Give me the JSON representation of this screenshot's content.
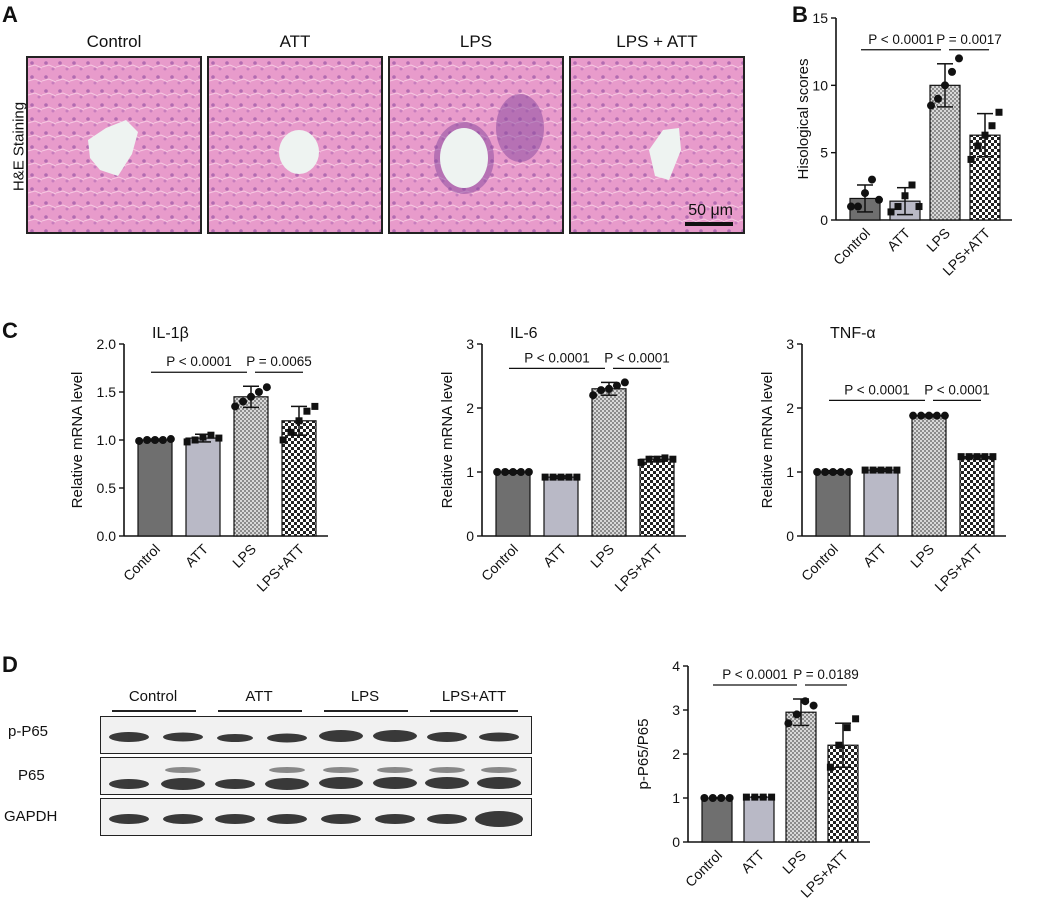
{
  "panels": {
    "a": "A",
    "b": "B",
    "c": "C",
    "d": "D"
  },
  "panel_a": {
    "columns": [
      "Control",
      "ATT",
      "LPS",
      "LPS + ATT"
    ],
    "row_label": "H&E Staining",
    "scale_bar": "50 μm"
  },
  "panel_d_blot": {
    "lanes": [
      "Control",
      "ATT",
      "LPS",
      "LPS+ATT"
    ],
    "rows": [
      "p-P65",
      "P65",
      "GAPDH"
    ]
  },
  "colors": {
    "control": "#6f6f6f",
    "att": "#b9b9c6",
    "lps": "#9a9a9a",
    "lps_att": "#4a4a4a",
    "stain": "#e79ac9"
  },
  "chart_data": [
    {
      "id": "B",
      "type": "bar",
      "categories": [
        "Control",
        "ATT",
        "LPS",
        "LPS+ATT"
      ],
      "values": [
        1.6,
        1.4,
        10.0,
        6.3
      ],
      "errors": [
        1.0,
        1.0,
        1.6,
        1.6
      ],
      "points": [
        [
          1.0,
          1.0,
          2.0,
          3.0,
          1.5
        ],
        [
          0.6,
          1.0,
          1.8,
          2.6,
          1.0
        ],
        [
          8.5,
          9.0,
          10.0,
          11.0,
          12.0
        ],
        [
          4.5,
          5.5,
          6.3,
          7.0,
          8.0
        ]
      ],
      "ylabel": "Hisological scores",
      "ylim": [
        0,
        15
      ],
      "yticks": [
        "0",
        "5",
        "10",
        "15"
      ],
      "annotations": [
        {
          "text": "P < 0.0001",
          "from": 0,
          "to": 2
        },
        {
          "text": "P = 0.0017",
          "from": 2,
          "to": 3
        }
      ]
    },
    {
      "id": "C1",
      "type": "bar",
      "title": "IL-1β",
      "categories": [
        "Control",
        "ATT",
        "LPS",
        "LPS+ATT"
      ],
      "values": [
        1.0,
        1.02,
        1.45,
        1.2
      ],
      "errors": [
        0.01,
        0.04,
        0.11,
        0.15
      ],
      "points": [
        [
          0.99,
          1.0,
          1.0,
          1.0,
          1.01
        ],
        [
          0.98,
          1.0,
          1.03,
          1.05,
          1.02
        ],
        [
          1.35,
          1.4,
          1.45,
          1.5,
          1.55
        ],
        [
          1.0,
          1.08,
          1.2,
          1.3,
          1.35
        ]
      ],
      "ylabel": "Relative mRNA level",
      "ylim": [
        0,
        2.0
      ],
      "yticks": [
        "0.0",
        "0.5",
        "1.0",
        "1.5",
        "2.0"
      ],
      "annotations": [
        {
          "text": "P < 0.0001",
          "from": 0,
          "to": 2
        },
        {
          "text": "P = 0.0065",
          "from": 2,
          "to": 3
        }
      ]
    },
    {
      "id": "C2",
      "type": "bar",
      "title": "IL-6",
      "categories": [
        "Control",
        "ATT",
        "LPS",
        "LPS+ATT"
      ],
      "values": [
        1.0,
        0.92,
        2.3,
        1.2
      ],
      "errors": [
        0.02,
        0.02,
        0.1,
        0.04
      ],
      "points": [
        [
          1.0,
          1.0,
          1.0,
          1.0,
          1.0
        ],
        [
          0.92,
          0.92,
          0.92,
          0.92,
          0.92
        ],
        [
          2.2,
          2.28,
          2.3,
          2.35,
          2.4
        ],
        [
          1.15,
          1.2,
          1.2,
          1.22,
          1.2
        ]
      ],
      "ylabel": "Relative mRNA level",
      "ylim": [
        0,
        3
      ],
      "yticks": [
        "0",
        "1",
        "2",
        "3"
      ],
      "annotations": [
        {
          "text": "P < 0.0001",
          "from": 0,
          "to": 2
        },
        {
          "text": "P < 0.0001",
          "from": 2,
          "to": 3
        }
      ]
    },
    {
      "id": "C3",
      "type": "bar",
      "title": "TNF-α",
      "categories": [
        "Control",
        "ATT",
        "LPS",
        "LPS+ATT"
      ],
      "values": [
        1.0,
        1.03,
        1.88,
        1.24
      ],
      "errors": [
        0.02,
        0.02,
        0.02,
        0.02
      ],
      "points": [
        [
          1.0,
          1.0,
          1.0,
          1.0,
          1.0
        ],
        [
          1.03,
          1.03,
          1.03,
          1.03,
          1.03
        ],
        [
          1.88,
          1.88,
          1.88,
          1.88,
          1.88
        ],
        [
          1.24,
          1.24,
          1.24,
          1.24,
          1.24
        ]
      ],
      "ylabel": "Relative mRNA level",
      "ylim": [
        0,
        3
      ],
      "yticks": [
        "0",
        "1",
        "2",
        "3"
      ],
      "annotations": [
        {
          "text": "P < 0.0001",
          "from": 0,
          "to": 2
        },
        {
          "text": "P < 0.0001",
          "from": 2,
          "to": 3
        }
      ]
    },
    {
      "id": "D",
      "type": "bar",
      "categories": [
        "Control",
        "ATT",
        "LPS",
        "LPS+ATT"
      ],
      "values": [
        1.0,
        1.02,
        2.95,
        2.2
      ],
      "errors": [
        0.01,
        0.01,
        0.3,
        0.5
      ],
      "points": [
        [
          1.0,
          1.0,
          1.0,
          1.0
        ],
        [
          1.02,
          1.02,
          1.02,
          1.02
        ],
        [
          2.7,
          2.9,
          3.2,
          3.1
        ],
        [
          1.7,
          2.2,
          2.6,
          2.8
        ]
      ],
      "ylabel": "p-P65/P65",
      "ylim": [
        0,
        4
      ],
      "yticks": [
        "0",
        "1",
        "2",
        "3",
        "4"
      ],
      "annotations": [
        {
          "text": "P < 0.0001",
          "from": 0,
          "to": 2
        },
        {
          "text": "P = 0.0189",
          "from": 2,
          "to": 3
        }
      ]
    }
  ]
}
